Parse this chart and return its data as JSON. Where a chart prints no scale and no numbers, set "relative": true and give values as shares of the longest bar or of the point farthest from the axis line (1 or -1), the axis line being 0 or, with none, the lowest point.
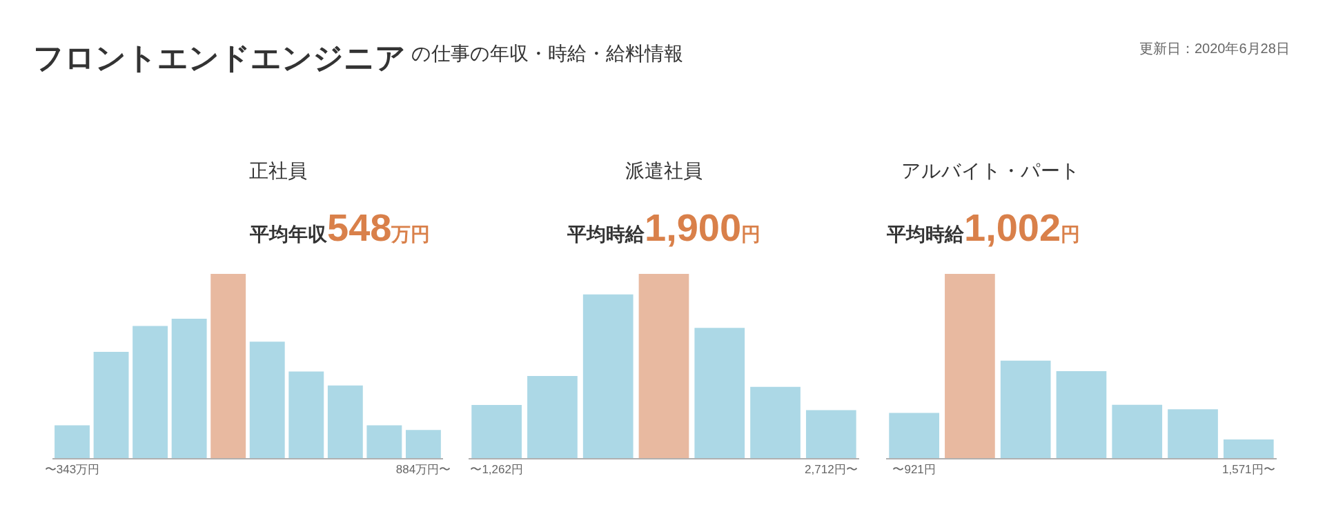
{
  "chart_data": [
    {
      "type": "bar",
      "relative": true,
      "title": "正社員",
      "subtitle": "平均年収548万円",
      "annotations": [
        "フロントエンドエンジニア",
        "の仕事の年収・時給・給料情報",
        "更新日：2020年6月28日"
      ],
      "categories": [
        "〜343万円",
        null,
        null,
        null,
        null,
        null,
        null,
        null,
        null,
        "884万円〜"
      ],
      "values": [
        0.178,
        0.577,
        0.717,
        0.757,
        1,
        0.632,
        0.47,
        0.394,
        0.178,
        0.153
      ],
      "colors": [
        "#acd8e6",
        "#acd8e6",
        "#acd8e6",
        "#acd8e6",
        "#e8b9a0",
        "#acd8e6",
        "#acd8e6",
        "#acd8e6",
        "#acd8e6",
        "#acd8e6"
      ]
    },
    {
      "type": "bar",
      "relative": true,
      "title": "派遣社員",
      "subtitle": "平均時給1,900円",
      "categories": [
        "〜1,262円",
        null,
        null,
        null,
        null,
        null,
        "2,712円〜"
      ],
      "values": [
        0.288,
        0.446,
        0.889,
        1,
        0.707,
        0.387,
        0.26
      ],
      "colors": [
        "#acd8e6",
        "#acd8e6",
        "#acd8e6",
        "#e8b9a0",
        "#acd8e6",
        "#acd8e6",
        "#acd8e6"
      ]
    },
    {
      "type": "bar",
      "relative": true,
      "title": "アルバイト・パート",
      "subtitle": "平均時給1,002円",
      "categories": [
        "〜921円",
        null,
        null,
        null,
        null,
        null,
        "1,571円〜"
      ],
      "values": [
        0.245,
        1,
        0.529,
        0.472,
        0.289,
        0.265,
        0.101
      ],
      "colors": [
        "#acd8e6",
        "#e8b9a0",
        "#acd8e6",
        "#acd8e6",
        "#acd8e6",
        "#acd8e6",
        "#acd8e6"
      ]
    }
  ]
}
